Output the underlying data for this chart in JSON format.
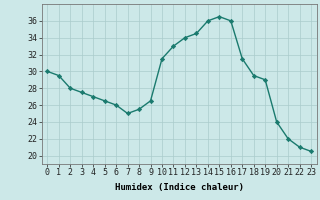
{
  "x": [
    0,
    1,
    2,
    3,
    4,
    5,
    6,
    7,
    8,
    9,
    10,
    11,
    12,
    13,
    14,
    15,
    16,
    17,
    18,
    19,
    20,
    21,
    22,
    23
  ],
  "y": [
    30,
    29.5,
    28,
    27.5,
    27,
    26.5,
    26,
    25,
    25.5,
    26.5,
    31.5,
    33,
    34,
    34.5,
    36,
    36.5,
    36,
    31.5,
    29.5,
    29,
    24,
    22,
    21,
    20.5
  ],
  "line_color": "#1a7a6e",
  "marker_color": "#1a7a6e",
  "bg_color": "#cce8e8",
  "grid_color": "#aacccc",
  "xlabel": "Humidex (Indice chaleur)",
  "ylim": [
    19,
    38
  ],
  "xlim": [
    -0.5,
    23.5
  ],
  "yticks": [
    20,
    22,
    24,
    26,
    28,
    30,
    32,
    34,
    36
  ],
  "xticks": [
    0,
    1,
    2,
    3,
    4,
    5,
    6,
    7,
    8,
    9,
    10,
    11,
    12,
    13,
    14,
    15,
    16,
    17,
    18,
    19,
    20,
    21,
    22,
    23
  ],
  "xlabel_fontsize": 6.5,
  "tick_fontsize": 6.0,
  "linewidth": 1.0,
  "markersize": 2.2
}
